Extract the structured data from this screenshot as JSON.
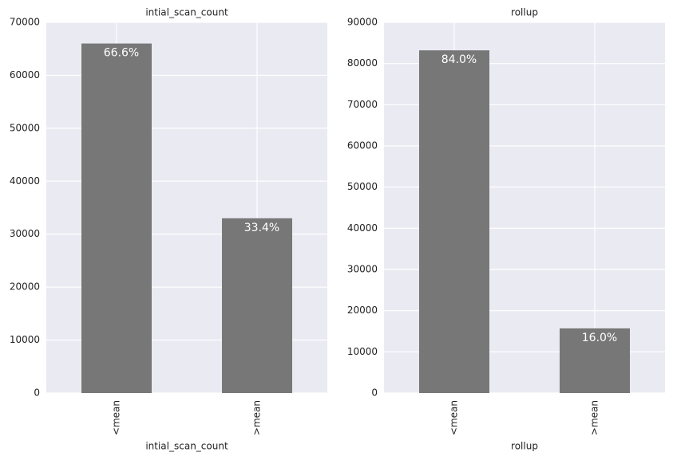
{
  "chart_data": [
    {
      "type": "bar",
      "title": "intial_scan_count",
      "x_label": "intial_scan_count",
      "categories": [
        "<mean",
        ">mean"
      ],
      "values": [
        66000,
        33000
      ],
      "annotations": [
        "66.6%",
        "33.4%"
      ],
      "color": "#777777",
      "ylim": [
        0,
        70000
      ],
      "yticks": [
        0,
        10000,
        20000,
        30000,
        40000,
        50000,
        60000,
        70000
      ],
      "grid": true
    },
    {
      "type": "bar",
      "title": "rollup",
      "x_label": "rollup",
      "categories": [
        "<mean",
        ">mean"
      ],
      "values": [
        83200,
        15700
      ],
      "annotations": [
        "84.0%",
        "16.0%"
      ],
      "color": "#777777",
      "ylim": [
        0,
        90000
      ],
      "yticks": [
        0,
        10000,
        20000,
        30000,
        40000,
        50000,
        60000,
        70000,
        80000,
        90000
      ],
      "grid": true
    }
  ]
}
